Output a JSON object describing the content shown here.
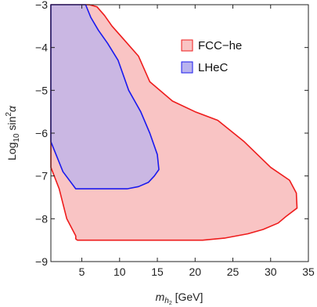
{
  "chart_data": {
    "type": "area",
    "title": "",
    "xlabel_main": "m",
    "xlabel_sub": "h",
    "xlabel_subsub": "2",
    "xlabel_unit": " [GeV]",
    "ylabel_main": "Log",
    "ylabel_sub": "10",
    "ylabel_rest": " sin",
    "ylabel_sup": "2",
    "ylabel_greek": "α",
    "xlim": [
      0.9,
      35
    ],
    "ylim": [
      -9,
      -3
    ],
    "xticks": [
      5,
      10,
      15,
      20,
      25,
      30,
      35
    ],
    "yticks": [
      -9,
      -8,
      -7,
      -6,
      -5,
      -4,
      -3
    ],
    "xtick_labels": [
      "5",
      "10",
      "15",
      "20",
      "25",
      "30",
      "35"
    ],
    "ytick_labels": [
      "−9",
      "−8",
      "−7",
      "−6",
      "−5",
      "−4",
      "−3"
    ],
    "grid": false,
    "legend_position": "top-right",
    "series": [
      {
        "name": "FCC−he",
        "fill": "#f9c4c4",
        "stroke": "#ee1c1c",
        "x": [
          0.9,
          2.0,
          3.0,
          4.2,
          4.2,
          4.4,
          4.6,
          5.0,
          6.0,
          9.0,
          12.0,
          15.0,
          18.0,
          21.0,
          24.0,
          27.0,
          29.0,
          31.0,
          32.0,
          33.5,
          33.4,
          32.5,
          30.0,
          26.5,
          23.0,
          20.0,
          17.0,
          14.0,
          12.5,
          10.5,
          9.0,
          8.0,
          7.0,
          6.0,
          0.9
        ],
        "y": [
          -6.8,
          -7.3,
          -8.0,
          -8.4,
          -8.47,
          -8.5,
          -8.5,
          -8.5,
          -8.5,
          -8.5,
          -8.5,
          -8.5,
          -8.5,
          -8.5,
          -8.45,
          -8.35,
          -8.25,
          -8.1,
          -7.95,
          -7.75,
          -7.4,
          -7.1,
          -6.8,
          -6.2,
          -5.7,
          -5.5,
          -5.25,
          -4.8,
          -4.2,
          -3.8,
          -3.5,
          -3.25,
          -3.05,
          -3.0,
          -3.0
        ]
      },
      {
        "name": "LHeC",
        "fill": "#b9b3ee",
        "stroke": "#1a1aee",
        "x": [
          0.9,
          2.5,
          4.2,
          6.0,
          8.5,
          11.0,
          12.5,
          13.8,
          14.6,
          15.2,
          15.0,
          14.0,
          12.8,
          11.2,
          9.8,
          8.4,
          7.2,
          6.2,
          5.5,
          4.2,
          0.9
        ],
        "y": [
          -6.2,
          -6.9,
          -7.3,
          -7.3,
          -7.3,
          -7.3,
          -7.25,
          -7.15,
          -7.0,
          -6.85,
          -6.5,
          -6.0,
          -5.5,
          -5.0,
          -4.3,
          -3.9,
          -3.6,
          -3.3,
          -3.0,
          -3.0,
          -3.0
        ]
      }
    ]
  }
}
